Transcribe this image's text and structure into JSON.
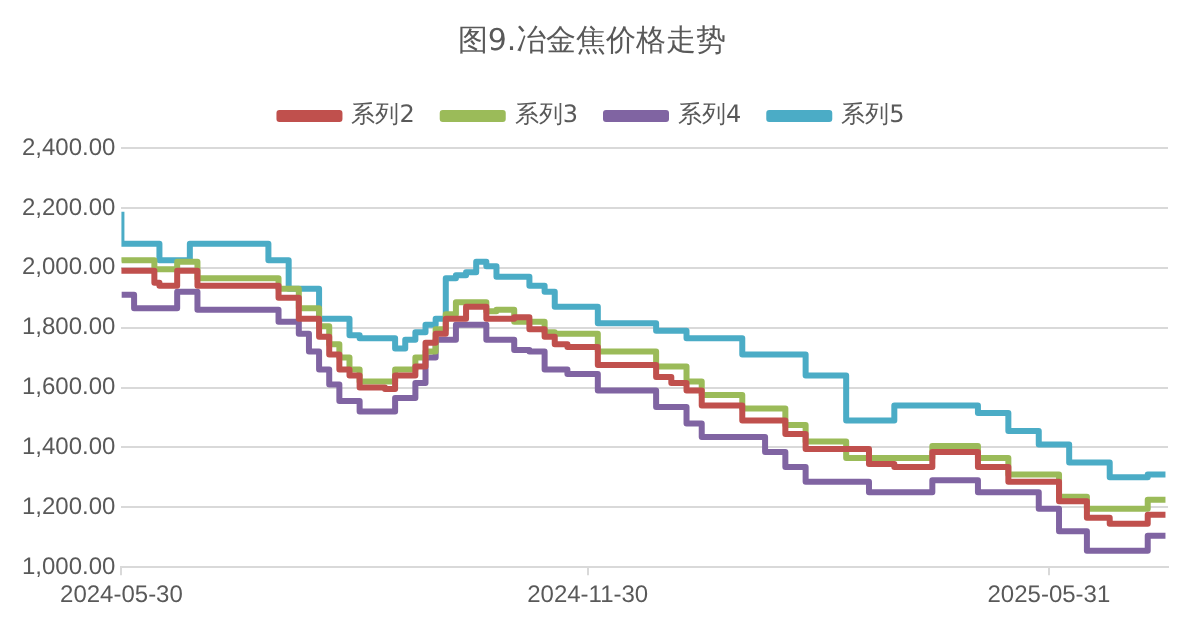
{
  "chart_data": {
    "type": "step",
    "title": "图9.冶金焦价格走势",
    "x": [
      "2024-05-30",
      "2024-06-04",
      "2024-06-12",
      "2024-06-14",
      "2024-06-21",
      "2024-06-26",
      "2024-06-29",
      "2024-07-27",
      "2024-07-31",
      "2024-08-04",
      "2024-08-08",
      "2024-08-12",
      "2024-08-16",
      "2024-08-20",
      "2024-08-24",
      "2024-08-28",
      "2024-09-01",
      "2024-09-11",
      "2024-09-15",
      "2024-09-19",
      "2024-09-23",
      "2024-09-27",
      "2024-10-01",
      "2024-10-05",
      "2024-10-09",
      "2024-10-13",
      "2024-10-17",
      "2024-10-21",
      "2024-10-25",
      "2024-11-01",
      "2024-11-07",
      "2024-11-13",
      "2024-11-17",
      "2024-11-22",
      "2024-11-26",
      "2024-12-04",
      "2024-12-10",
      "2024-12-19",
      "2024-12-27",
      "2025-01-02",
      "2025-01-08",
      "2025-01-14",
      "2025-01-19",
      "2025-01-30",
      "2025-02-08",
      "2025-02-16",
      "2025-02-24",
      "2025-03-03",
      "2025-03-12",
      "2025-03-21",
      "2025-03-31",
      "2025-04-15",
      "2025-04-22",
      "2025-05-03",
      "2025-05-15",
      "2025-05-27",
      "2025-06-04",
      "2025-06-08",
      "2025-06-15",
      "2025-06-24",
      "2025-07-01",
      "2025-07-09",
      "2025-07-16"
    ],
    "series": [
      {
        "name": "系列2",
        "color": "#c0504d",
        "values": [
          2000,
          1990,
          1990,
          1950,
          1940,
          1990,
          1990,
          1940,
          1940,
          1900,
          1900,
          1830,
          1830,
          1770,
          1710,
          1660,
          1640,
          1600,
          1595,
          1640,
          1640,
          1670,
          1750,
          1780,
          1830,
          1830,
          1870,
          1870,
          1830,
          1830,
          1835,
          1795,
          1770,
          1745,
          1735,
          1735,
          1675,
          1675,
          1675,
          1635,
          1615,
          1590,
          1540,
          1540,
          1490,
          1490,
          1445,
          1395,
          1395,
          1395,
          1345,
          1335,
          1385,
          1385,
          1335,
          1285,
          1285,
          1220,
          1220,
          1165,
          1145,
          1145,
          1175
        ]
      },
      {
        "name": "系列3",
        "color": "#9bbb59",
        "values": [
          2020,
          2025,
          2025,
          1995,
          1995,
          2020,
          2020,
          1965,
          1965,
          1930,
          1930,
          1865,
          1865,
          1805,
          1745,
          1700,
          1660,
          1620,
          1620,
          1660,
          1660,
          1700,
          1720,
          1795,
          1845,
          1885,
          1885,
          1885,
          1855,
          1860,
          1820,
          1820,
          1785,
          1780,
          1780,
          1780,
          1720,
          1720,
          1720,
          1670,
          1670,
          1620,
          1575,
          1575,
          1530,
          1530,
          1475,
          1420,
          1420,
          1365,
          1365,
          1365,
          1405,
          1405,
          1365,
          1310,
          1310,
          1235,
          1235,
          1195,
          1195,
          1195,
          1225
        ]
      },
      {
        "name": "系列4",
        "color": "#8064a2",
        "values": [
          1910,
          1910,
          1865,
          1865,
          1865,
          1920,
          1920,
          1860,
          1860,
          1820,
          1820,
          1780,
          1720,
          1660,
          1610,
          1555,
          1555,
          1520,
          1520,
          1565,
          1565,
          1615,
          1700,
          1760,
          1760,
          1810,
          1810,
          1810,
          1760,
          1760,
          1725,
          1720,
          1660,
          1660,
          1645,
          1645,
          1590,
          1590,
          1590,
          1535,
          1535,
          1480,
          1435,
          1435,
          1435,
          1385,
          1335,
          1285,
          1285,
          1285,
          1250,
          1250,
          1290,
          1290,
          1250,
          1250,
          1195,
          1120,
          1120,
          1055,
          1055,
          1055,
          1105
        ]
      },
      {
        "name": "系列5",
        "color": "#4bacc6",
        "values": [
          2187,
          2080,
          2080,
          2080,
          2025,
          2025,
          2080,
          2080,
          2025,
          2025,
          1930,
          1930,
          1930,
          1830,
          1830,
          1830,
          1775,
          1765,
          1765,
          1730,
          1760,
          1785,
          1810,
          1830,
          1965,
          1975,
          1985,
          2020,
          2005,
          1970,
          1970,
          1940,
          1920,
          1870,
          1870,
          1870,
          1815,
          1815,
          1815,
          1790,
          1790,
          1765,
          1765,
          1765,
          1710,
          1710,
          1710,
          1640,
          1640,
          1490,
          1490,
          1540,
          1540,
          1540,
          1515,
          1455,
          1410,
          1410,
          1350,
          1350,
          1300,
          1300,
          1310
        ]
      }
    ],
    "xlim": [
      "2024-05-30",
      "2025-07-17"
    ],
    "xticks": [
      "2024-05-30",
      "2024-11-30",
      "2025-05-31"
    ],
    "ylim": [
      1000,
      2400
    ],
    "yticks": [
      {
        "value": 1000,
        "label": "1,000.00"
      },
      {
        "value": 1200,
        "label": "1,200.00"
      },
      {
        "value": 1400,
        "label": "1,400.00"
      },
      {
        "value": 1600,
        "label": "1,600.00"
      },
      {
        "value": 1800,
        "label": "1,800.00"
      },
      {
        "value": 2000,
        "label": "2,000.00"
      },
      {
        "value": 2200,
        "label": "2,200.00"
      },
      {
        "value": 2400,
        "label": "2,400.00"
      }
    ],
    "grid": "y",
    "legend": "top"
  }
}
